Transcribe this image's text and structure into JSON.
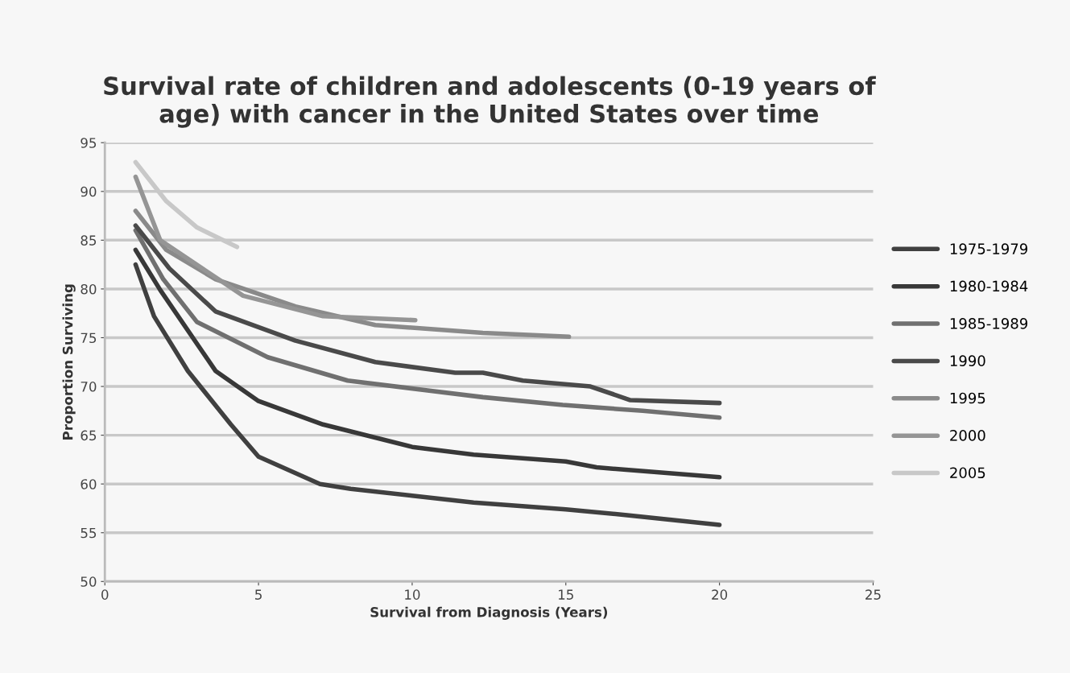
{
  "chart_data": {
    "type": "line",
    "title": "Survival rate of children and adolescents (0-19 years of\nage) with cancer in the United States over time",
    "xlabel": "Survival from Diagnosis (Years)",
    "ylabel": "Proportion Surviving",
    "xlim": [
      0,
      25
    ],
    "xticks": [
      0,
      5,
      10,
      15,
      20,
      25
    ],
    "ylim": [
      50,
      95
    ],
    "yticks": [
      50,
      55,
      60,
      65,
      70,
      75,
      80,
      85,
      90,
      95
    ],
    "grid": "y",
    "legend": "right",
    "marker": "none",
    "line_style": "solid",
    "series": [
      {
        "name": "1975-1979",
        "color": "#404040",
        "x": [
          1,
          1.6,
          2.7,
          4.1,
          5,
          7,
          8,
          10,
          12,
          15,
          17,
          20
        ],
        "values": [
          82.5,
          77.2,
          71.6,
          66.1,
          62.8,
          60,
          59.5,
          58.8,
          58.1,
          57.4,
          56.8,
          55.8
        ]
      },
      {
        "name": "1980-1984",
        "color": "#383838",
        "x": [
          1,
          1.8,
          3.6,
          5,
          7.1,
          10,
          12,
          15,
          16,
          20
        ],
        "values": [
          84,
          79.9,
          71.6,
          68.5,
          66.1,
          63.8,
          63,
          62.3,
          61.7,
          60.7
        ]
      },
      {
        "name": "1985-1989",
        "color": "#707070",
        "x": [
          1,
          1.9,
          3,
          5.3,
          7.9,
          10.5,
          12.3,
          14.9,
          17.5,
          20
        ],
        "values": [
          86,
          81,
          76.6,
          73,
          70.6,
          69.6,
          68.9,
          68.1,
          67.5,
          66.8
        ]
      },
      {
        "name": "1990",
        "color": "#4a4a4a",
        "x": [
          1,
          2.1,
          3.6,
          6.2,
          8.8,
          11.4,
          12.3,
          13.6,
          15.8,
          17.1,
          20
        ],
        "values": [
          86.5,
          82.1,
          77.7,
          74.7,
          72.5,
          71.4,
          71.4,
          70.6,
          70,
          68.6,
          68.3
        ]
      },
      {
        "name": "1995",
        "color": "#8a8a8a",
        "x": [
          1,
          2,
          3.6,
          6.2,
          8.8,
          12.3,
          15.1
        ],
        "values": [
          88,
          84,
          81,
          78.2,
          76.3,
          75.5,
          75.1
        ]
      },
      {
        "name": "2000",
        "color": "#959595",
        "x": [
          1,
          1.8,
          4.5,
          7.1,
          10.1
        ],
        "values": [
          91.5,
          85,
          79.3,
          77.2,
          76.8
        ]
      },
      {
        "name": "2005",
        "color": "#c8c8c8",
        "x": [
          1,
          2,
          3,
          4.3
        ],
        "values": [
          93,
          89,
          86.3,
          84.3
        ]
      }
    ]
  }
}
